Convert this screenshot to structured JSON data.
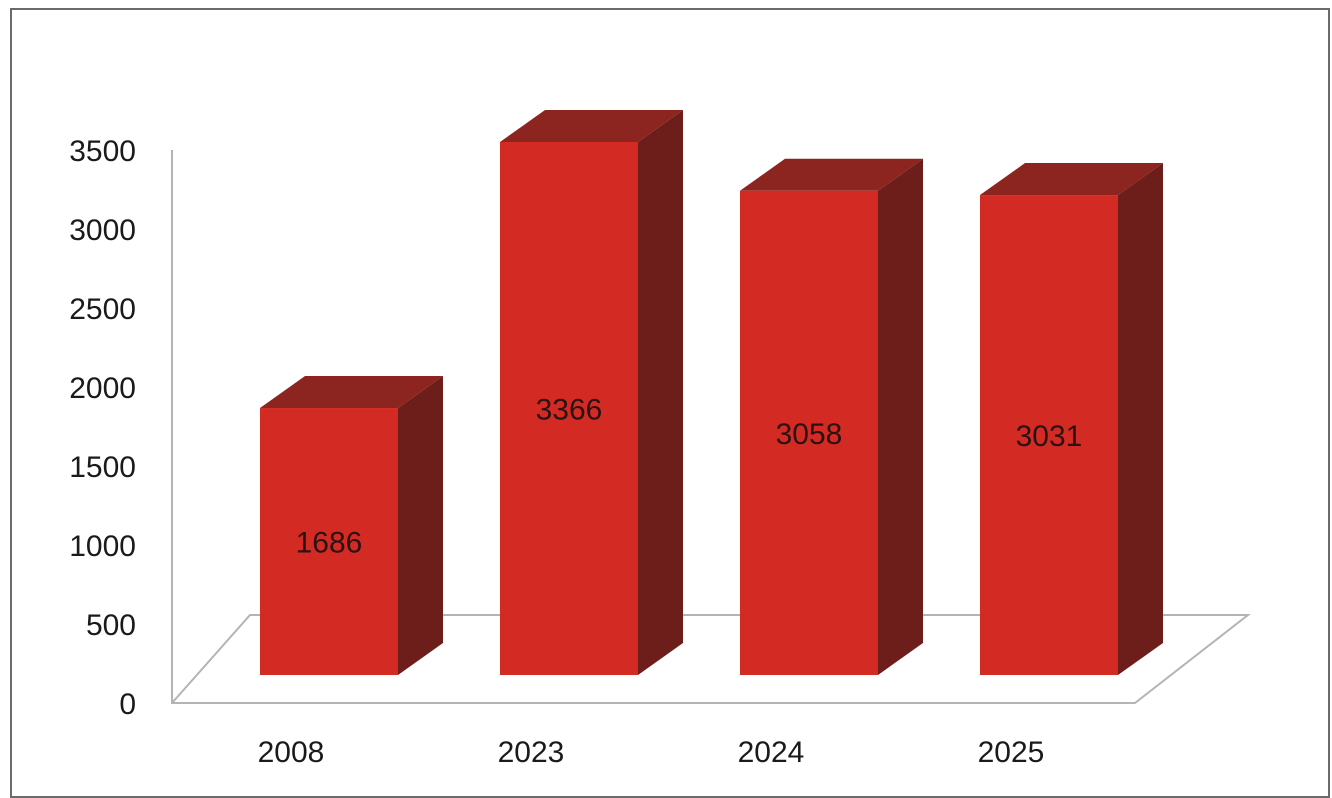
{
  "chart_data": {
    "type": "bar",
    "categories": [
      "2008",
      "2023",
      "2024",
      "2025"
    ],
    "values": [
      1686,
      3366,
      3058,
      3031
    ],
    "data_labels": [
      "1686",
      "3366",
      "3058",
      "3031"
    ],
    "title": "",
    "xlabel": "",
    "ylabel": "",
    "ylim": [
      0,
      3500
    ],
    "y_ticks": [
      "0",
      "500",
      "1000",
      "1500",
      "2000",
      "2500",
      "3000",
      "3500"
    ],
    "grid": false,
    "legend": "none",
    "style": "3d-column",
    "colors": {
      "front": "#d42a24",
      "side": "#6e1e1a",
      "top": "#8c2420",
      "floor_line": "#b4b4b4",
      "axis_line": "#a0a0a0"
    }
  }
}
